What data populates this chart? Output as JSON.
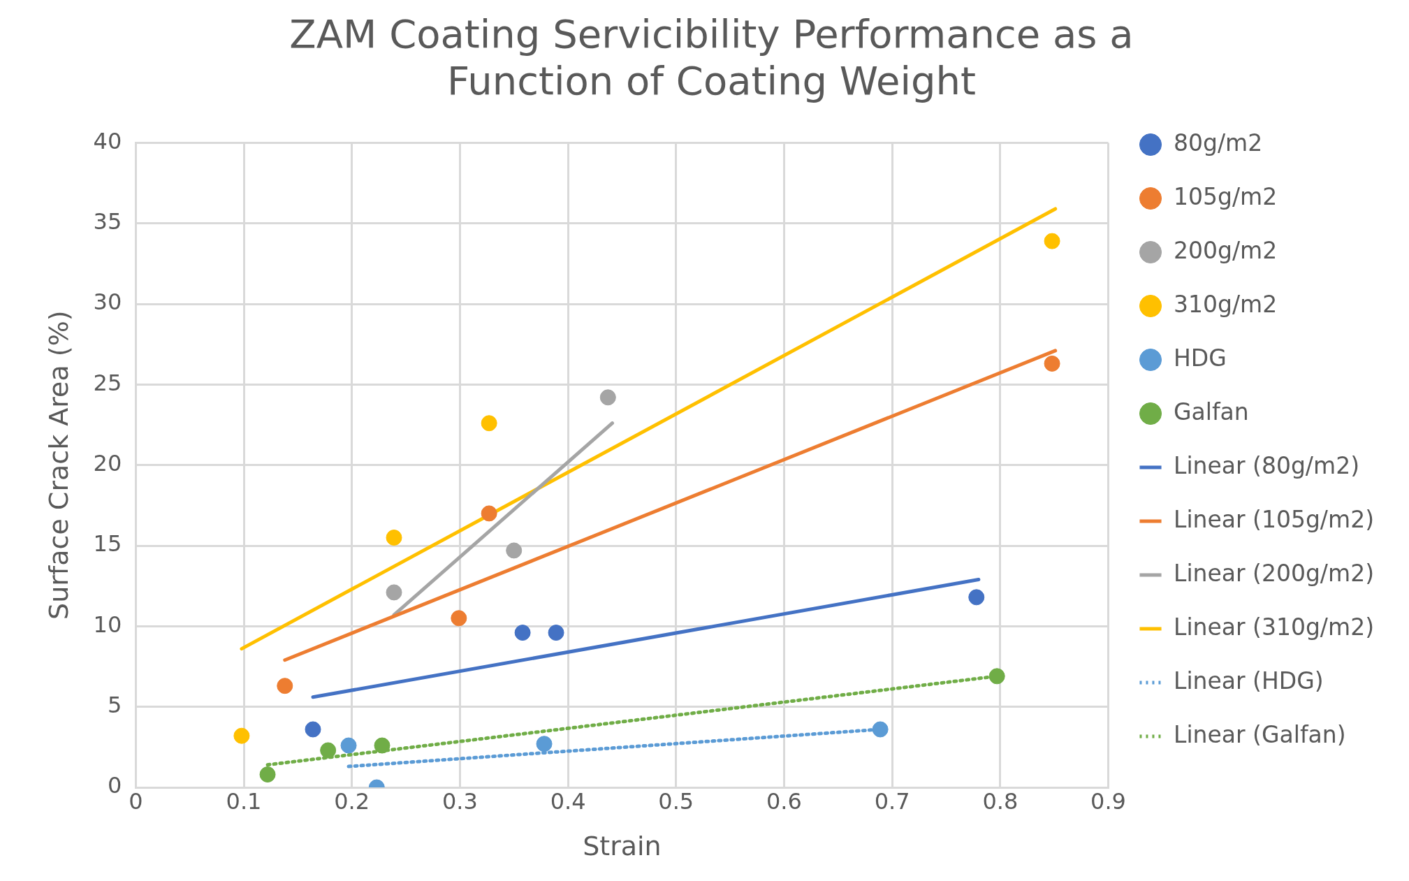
{
  "chart_data": {
    "type": "scatter",
    "title": "ZAM Coating Servicibility Performance as a Function of Coating Weight",
    "xlabel": "Strain",
    "ylabel": "Surface Crack Area (%)",
    "xlim": [
      0,
      0.9
    ],
    "xticks": [
      0,
      0.1,
      0.2,
      0.3,
      0.4,
      0.5,
      0.6,
      0.7,
      0.8,
      0.9
    ],
    "ylim": [
      0,
      40
    ],
    "yticks": [
      0,
      5,
      10,
      15,
      20,
      25,
      30,
      35,
      40
    ],
    "grid": true,
    "legend": "right",
    "marker": "circle",
    "series": [
      {
        "name": "80g/m2",
        "type": "scatter",
        "color": "#4472c4",
        "x": [
          0.164,
          0.358,
          0.389,
          0.778
        ],
        "values": [
          3.6,
          9.6,
          9.6,
          11.8
        ]
      },
      {
        "name": "105g/m2",
        "type": "scatter",
        "color": "#ed7d31",
        "x": [
          0.138,
          0.299,
          0.327,
          0.848
        ],
        "values": [
          6.3,
          10.5,
          17.0,
          26.3
        ]
      },
      {
        "name": "200g/m2",
        "type": "scatter",
        "color": "#a5a5a5",
        "x": [
          0.239,
          0.35,
          0.437
        ],
        "values": [
          12.1,
          14.7,
          24.2
        ]
      },
      {
        "name": "310g/m2",
        "type": "scatter",
        "color": "#ffc000",
        "x": [
          0.098,
          0.239,
          0.327,
          0.848
        ],
        "values": [
          3.2,
          15.5,
          22.6,
          33.9
        ]
      },
      {
        "name": "HDG",
        "type": "scatter",
        "color": "#5b9bd5",
        "x": [
          0.197,
          0.223,
          0.378,
          0.689
        ],
        "values": [
          2.6,
          0,
          2.7,
          3.6
        ]
      },
      {
        "name": "Galfan",
        "type": "scatter",
        "color": "#70ad47",
        "x": [
          0.122,
          0.178,
          0.228,
          0.797
        ],
        "values": [
          0.8,
          2.3,
          2.6,
          6.9
        ]
      },
      {
        "name": "Linear (80g/m2)",
        "type": "line",
        "color": "#4472c4",
        "line_style": "solid",
        "marker": "none",
        "x": [
          0.164,
          0.78
        ],
        "values": [
          5.6,
          12.9
        ]
      },
      {
        "name": "Linear (105g/m2)",
        "type": "line",
        "color": "#ed7d31",
        "line_style": "solid",
        "marker": "none",
        "x": [
          0.138,
          0.851
        ],
        "values": [
          7.9,
          27.1
        ]
      },
      {
        "name": "Linear (200g/m2)",
        "type": "line",
        "color": "#a5a5a5",
        "line_style": "solid",
        "marker": "none",
        "x": [
          0.239,
          0.441
        ],
        "values": [
          10.7,
          22.6
        ]
      },
      {
        "name": "Linear (310g/m2)",
        "type": "line",
        "color": "#ffc000",
        "line_style": "solid",
        "marker": "none",
        "x": [
          0.098,
          0.851
        ],
        "values": [
          8.6,
          35.9
        ]
      },
      {
        "name": "Linear (HDG)",
        "type": "line",
        "color": "#5b9bd5",
        "line_style": "dotted",
        "marker": "none",
        "x": [
          0.197,
          0.689
        ],
        "values": [
          1.3,
          3.6
        ]
      },
      {
        "name": "Linear (Galfan)",
        "type": "line",
        "color": "#70ad47",
        "line_style": "dotted",
        "marker": "none",
        "x": [
          0.122,
          0.797
        ],
        "values": [
          1.4,
          6.9
        ]
      }
    ]
  }
}
